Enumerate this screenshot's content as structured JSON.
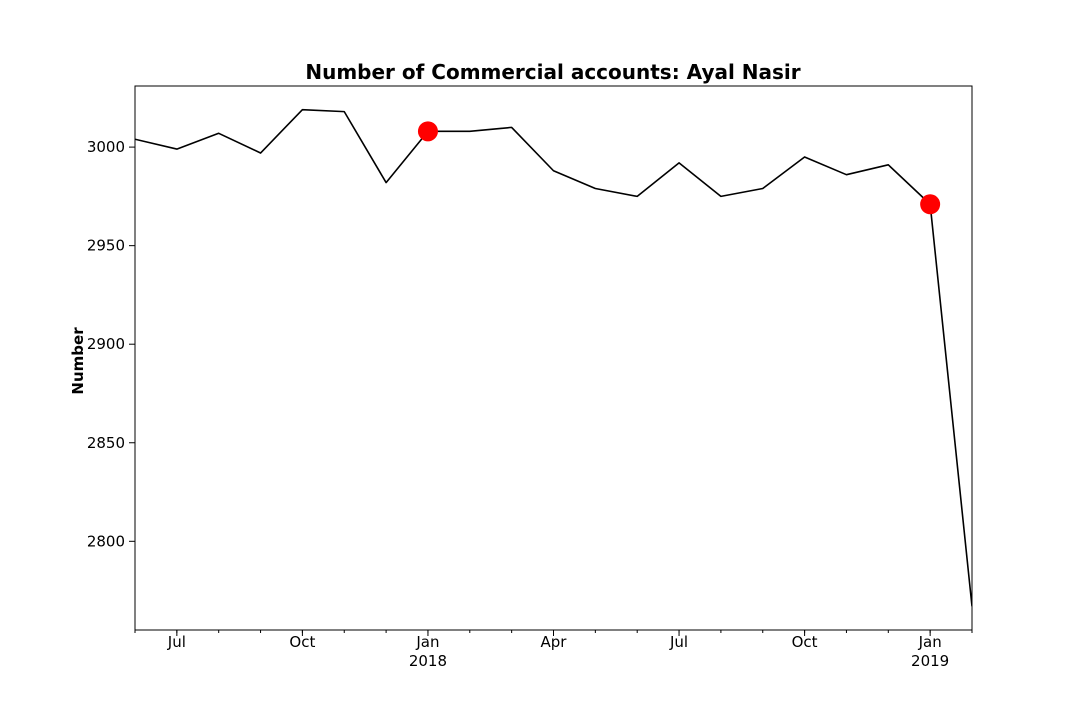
{
  "chart_data": {
    "type": "line",
    "title": "Number of Commercial accounts: Ayal Nasir",
    "xlabel": "",
    "ylabel": "Number",
    "x": [
      "2017-06",
      "2017-07",
      "2017-08",
      "2017-09",
      "2017-10",
      "2017-11",
      "2017-12",
      "2018-01",
      "2018-02",
      "2018-03",
      "2018-04",
      "2018-05",
      "2018-06",
      "2018-07",
      "2018-08",
      "2018-09",
      "2018-10",
      "2018-11",
      "2018-12",
      "2019-01",
      "2019-02"
    ],
    "series": [
      {
        "values": [
          3004,
          2999,
          3007,
          2997,
          3019,
          3018,
          2982,
          3008,
          3008,
          3010,
          2988,
          2979,
          2975,
          2992,
          2975,
          2979,
          2995,
          2986,
          2991,
          2971,
          2767
        ]
      }
    ],
    "highlights": [
      {
        "x": "2018-01",
        "value": 3008
      },
      {
        "x": "2019-01",
        "value": 2971
      }
    ],
    "xlim": [
      "2017-06",
      "2019-02"
    ],
    "ylim": [
      2755,
      3031
    ],
    "yticks": [
      2800,
      2850,
      2900,
      2950,
      3000
    ],
    "xticks_major": [
      {
        "x": "2017-07",
        "label": "Jul",
        "sublabel": ""
      },
      {
        "x": "2017-10",
        "label": "Oct",
        "sublabel": ""
      },
      {
        "x": "2018-01",
        "label": "Jan",
        "sublabel": "2018"
      },
      {
        "x": "2018-04",
        "label": "Apr",
        "sublabel": ""
      },
      {
        "x": "2018-07",
        "label": "Jul",
        "sublabel": ""
      },
      {
        "x": "2018-10",
        "label": "Oct",
        "sublabel": ""
      },
      {
        "x": "2019-01",
        "label": "Jan",
        "sublabel": "2019"
      }
    ],
    "grid": false,
    "legend": "none",
    "colors": {
      "line": "#000000",
      "highlight": "#ff0000",
      "axis": "#000000"
    }
  }
}
